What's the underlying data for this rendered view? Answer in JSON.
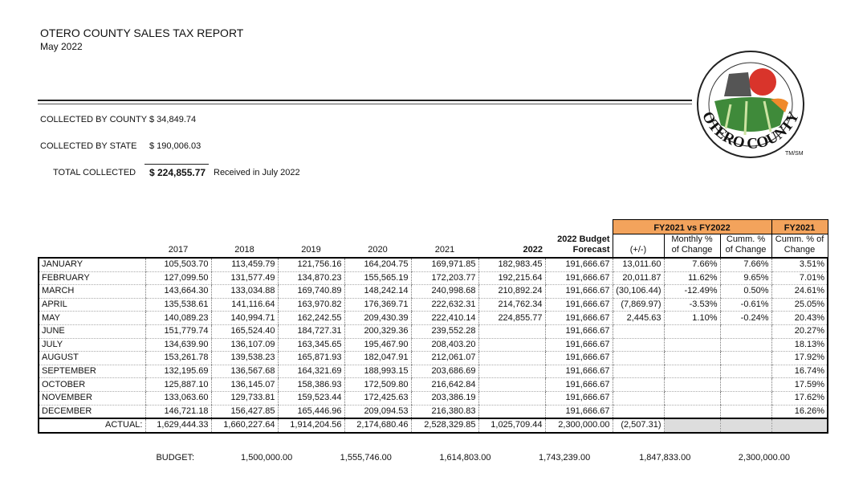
{
  "header": {
    "title": "OTERO COUNTY SALES TAX REPORT",
    "date": "May 2022"
  },
  "collections": {
    "rows": [
      {
        "label": "COLLECTED BY COUNTY",
        "amount": "$ 34,849.74"
      },
      {
        "label": "COLLECTED BY STATE",
        "amount": "$ 190,006.03"
      }
    ],
    "total": {
      "label": "TOTAL COLLECTED",
      "amount": "$ 224,855.77",
      "note": "Received in July 2022"
    }
  },
  "logo": {
    "name": "OTERO COUNTY",
    "mark": "TM/SM"
  },
  "table": {
    "group_headers": [
      "FY2021 vs FY2022",
      "FY2021"
    ],
    "columns": [
      "2017",
      "2018",
      "2019",
      "2020",
      "2021",
      "2022",
      "2022 Budget Forecast",
      "(+/-)",
      "Monthly % of Change",
      "Cumm. % of Change",
      "Cumm. % of Change"
    ],
    "rows": [
      [
        "JANUARY",
        "105,503.70",
        "113,459.79",
        "121,756.16",
        "164,204.75",
        "169,971.85",
        "182,983.45",
        "191,666.67",
        "13,011.60",
        "7.66%",
        "7.66%",
        "3.51%"
      ],
      [
        "FEBRUARY",
        "127,099.50",
        "131,577.49",
        "134,870.23",
        "155,565.19",
        "172,203.77",
        "192,215.64",
        "191,666.67",
        "20,011.87",
        "11.62%",
        "9.65%",
        "7.01%"
      ],
      [
        "MARCH",
        "143,664.30",
        "133,034.88",
        "169,740.89",
        "148,242.14",
        "240,998.68",
        "210,892.24",
        "191,666.67",
        "(30,106.44)",
        "-12.49%",
        "0.50%",
        "24.61%"
      ],
      [
        "APRIL",
        "135,538.61",
        "141,116.64",
        "163,970.82",
        "176,369.71",
        "222,632.31",
        "214,762.34",
        "191,666.67",
        "(7,869.97)",
        "-3.53%",
        "-0.61%",
        "25.05%"
      ],
      [
        "MAY",
        "140,089.23",
        "140,994.71",
        "162,242.55",
        "209,430.39",
        "222,410.14",
        "224,855.77",
        "191,666.67",
        "2,445.63",
        "1.10%",
        "-0.24%",
        "20.43%"
      ],
      [
        "JUNE",
        "151,779.74",
        "165,524.40",
        "184,727.31",
        "200,329.36",
        "239,552.28",
        null,
        "191,666.67",
        null,
        null,
        null,
        "20.27%"
      ],
      [
        "JULY",
        "134,639.90",
        "136,107.09",
        "163,345.65",
        "195,467.90",
        "208,403.20",
        null,
        "191,666.67",
        null,
        null,
        null,
        "18.13%"
      ],
      [
        "AUGUST",
        "153,261.78",
        "139,538.23",
        "165,871.93",
        "182,047.91",
        "212,061.07",
        null,
        "191,666.67",
        null,
        null,
        null,
        "17.92%"
      ],
      [
        "SEPTEMBER",
        "132,195.69",
        "136,567.68",
        "164,321.69",
        "188,993.15",
        "203,686.69",
        null,
        "191,666.67",
        null,
        null,
        null,
        "16.74%"
      ],
      [
        "OCTOBER",
        "125,887.10",
        "136,145.07",
        "158,386.93",
        "172,509.80",
        "216,642.84",
        null,
        "191,666.67",
        null,
        null,
        null,
        "17.59%"
      ],
      [
        "NOVEMBER",
        "133,063.60",
        "129,733.81",
        "159,523.44",
        "172,425.63",
        "203,386.19",
        null,
        "191,666.67",
        null,
        null,
        null,
        "17.62%"
      ],
      [
        "DECEMBER",
        "146,721.18",
        "156,427.85",
        "165,446.96",
        "209,094.53",
        "216,380.83",
        null,
        "191,666.67",
        null,
        null,
        null,
        "16.26%"
      ]
    ],
    "actual": [
      "ACTUAL:",
      "1,629,444.33",
      "1,660,227.64",
      "1,914,204.56",
      "2,174,680.46",
      "2,528,329.85",
      "1,025,709.44",
      "2,300,000.00",
      "(2,507.31)",
      null,
      null,
      null
    ],
    "budget": [
      "BUDGET:",
      "1,500,000.00",
      "1,555,746.00",
      "1,614,803.00",
      "1,743,239.00",
      "1,847,833.00",
      "2,300,000.00"
    ]
  }
}
